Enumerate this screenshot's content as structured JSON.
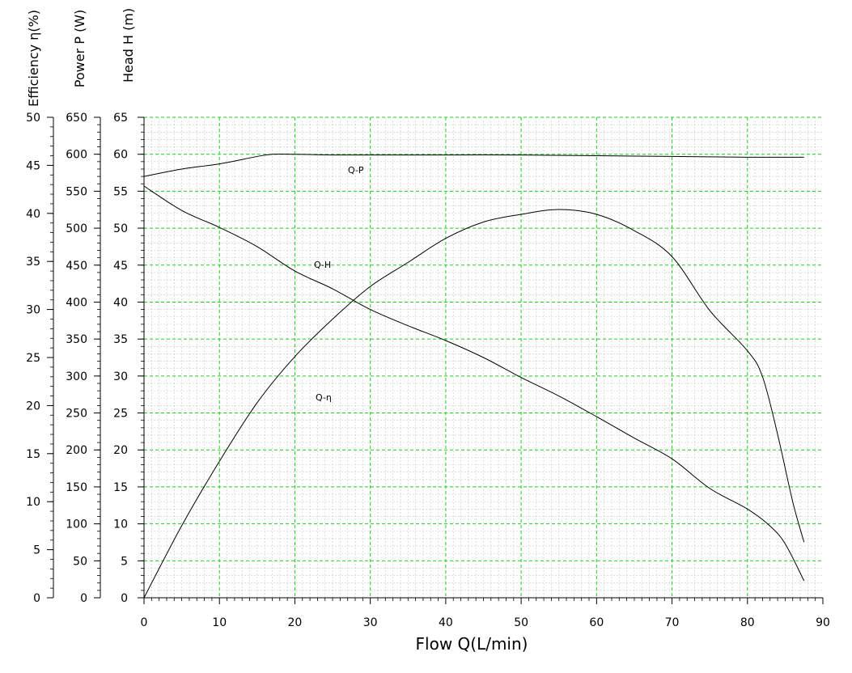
{
  "chart_data": {
    "type": "line",
    "xlabel": "Flow Q(L/min)",
    "xlim": [
      0,
      90
    ],
    "x_ticks": [
      "0",
      "10",
      "20",
      "30",
      "40",
      "50",
      "60",
      "70",
      "80",
      "90"
    ],
    "grid": true,
    "axes": {
      "head": {
        "label": "Head H (m)",
        "lim": [
          0,
          65
        ],
        "ticks": [
          "0",
          "5",
          "10",
          "15",
          "20",
          "25",
          "30",
          "35",
          "40",
          "45",
          "50",
          "55",
          "60",
          "65"
        ]
      },
      "power": {
        "label": "Power P (W)",
        "lim": [
          0,
          650
        ],
        "ticks": [
          "0",
          "50",
          "100",
          "150",
          "200",
          "250",
          "300",
          "350",
          "400",
          "450",
          "500",
          "550",
          "600",
          "650"
        ]
      },
      "efficiency": {
        "label": "Efficiency η(%)",
        "lim": [
          0,
          50
        ],
        "ticks": [
          "0",
          "5",
          "10",
          "15",
          "20",
          "25",
          "30",
          "35",
          "40",
          "45",
          "50"
        ]
      }
    },
    "series": [
      {
        "name": "Q-P",
        "axis": "power",
        "x": [
          0,
          5,
          10,
          15,
          17,
          20,
          25,
          30,
          40,
          50,
          60,
          70,
          80,
          87.5
        ],
        "y": [
          570,
          580,
          587,
          597,
          600,
          600,
          599,
          599,
          599,
          599,
          598,
          597,
          596,
          596
        ]
      },
      {
        "name": "Q-H",
        "axis": "head",
        "x": [
          0,
          5,
          10,
          15,
          20,
          25,
          30,
          35,
          40,
          45,
          50,
          55,
          60,
          65,
          70,
          75,
          80,
          83,
          85,
          87.5
        ],
        "y": [
          55.7,
          52.4,
          50.1,
          47.5,
          44.2,
          41.8,
          39.0,
          36.8,
          34.8,
          32.5,
          29.8,
          27.3,
          24.5,
          21.6,
          18.8,
          14.8,
          12.0,
          9.7,
          7.3,
          2.3
        ]
      },
      {
        "name": "Q-η",
        "axis": "efficiency",
        "x": [
          0,
          5,
          10,
          15,
          20,
          25,
          30,
          35,
          40,
          45,
          50,
          55,
          60,
          65,
          70,
          75,
          80,
          82,
          84,
          86,
          87.5
        ],
        "y": [
          0,
          7.5,
          14.2,
          20.3,
          25.1,
          29.0,
          32.4,
          34.9,
          37.4,
          39.1,
          39.9,
          40.4,
          39.9,
          38.2,
          35.5,
          29.9,
          25.7,
          23.0,
          17.0,
          10.0,
          5.8
        ]
      }
    ]
  }
}
